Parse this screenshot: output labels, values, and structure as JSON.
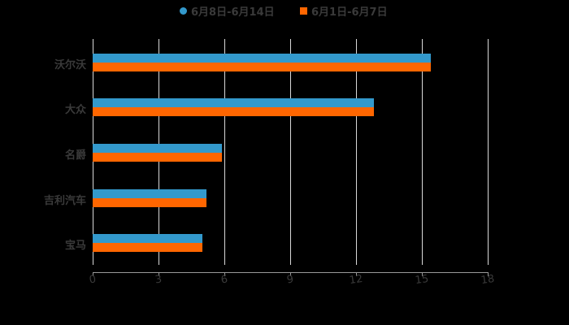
{
  "chart_data": {
    "type": "bar",
    "orientation": "horizontal",
    "title": "",
    "xlabel": "",
    "ylabel": "",
    "categories": [
      "沃尔沃",
      "大众",
      "名爵",
      "吉利汽车",
      "宝马"
    ],
    "series": [
      {
        "name": "6月8日-6月14日",
        "color": "#3399cc",
        "values": [
          15.4,
          12.8,
          5.9,
          5.2,
          5.0
        ]
      },
      {
        "name": "6月1日-6月7日",
        "color": "#ff6600",
        "values": [
          15.4,
          12.8,
          5.9,
          5.2,
          5.0
        ]
      }
    ],
    "xlim": [
      0,
      18
    ],
    "xticks": [
      "0",
      "3",
      "6",
      "9",
      "12",
      "15",
      "18"
    ],
    "grid": true,
    "legend_position": "top"
  },
  "legend": {
    "items": [
      {
        "label": "6月8日-6月14日",
        "marker": "circle",
        "color": "#3399cc"
      },
      {
        "label": "6月1日-6月7日",
        "marker": "square",
        "color": "#ff6600"
      }
    ]
  }
}
